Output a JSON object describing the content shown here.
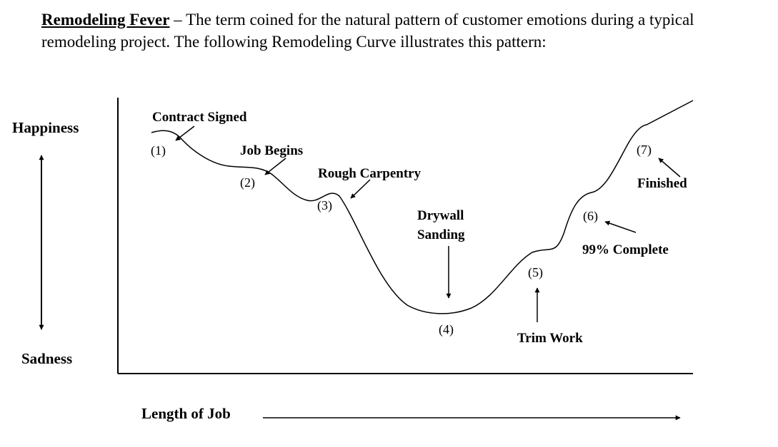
{
  "intro": {
    "term": "Remodeling Fever",
    "text": " – The term coined for the natural pattern of customer emotions during a typical remodeling project.  The following Remodeling Curve illustrates this pattern:"
  },
  "axes": {
    "y_top": "Happiness",
    "y_bottom": "Sadness",
    "x": "Length of Job"
  },
  "stages": [
    {
      "number": "(1)",
      "label": "Contract Signed"
    },
    {
      "number": "(2)",
      "label": "Job Begins"
    },
    {
      "number": "(3)",
      "label": "Rough Carpentry"
    },
    {
      "number": "(4)",
      "label_line1": "Drywall",
      "label_line2": "Sanding"
    },
    {
      "number": "(5)",
      "label": "Trim Work"
    },
    {
      "number": "(6)",
      "label": "99% Complete"
    },
    {
      "number": "(7)",
      "label": "Finished"
    }
  ]
}
